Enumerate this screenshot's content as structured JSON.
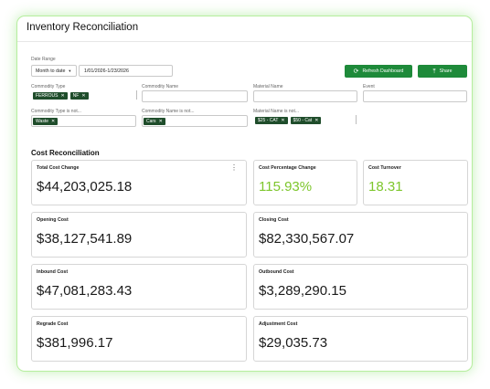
{
  "app": {
    "title": "Inventory Reconciliation"
  },
  "filters": {
    "date_range": {
      "label": "Date Range",
      "preset": "Month to date",
      "value": "1/01/2026-1/23/2026"
    },
    "commodity_type": {
      "label": "Commodity Type",
      "chips": [
        "FERROUS",
        "NF"
      ]
    },
    "commodity_name": {
      "label": "Commodity Name",
      "value": ""
    },
    "material_name": {
      "label": "Material Name",
      "value": ""
    },
    "event": {
      "label": "Event",
      "value": ""
    },
    "commodity_type_not": {
      "label": "Commodity Type is not...",
      "chips": [
        "Waste"
      ]
    },
    "commodity_name_not": {
      "label": "Commodity Name is not...",
      "chips": [
        "Cars"
      ]
    },
    "material_name_not": {
      "label": "Material Name is not...",
      "chips": [
        "$25 - CAT",
        "$50 - Cat"
      ]
    }
  },
  "actions": {
    "refresh_label": "Refresh Dashboard",
    "share_label": "Share"
  },
  "section": {
    "title": "Cost Reconciliation"
  },
  "metrics": {
    "total_cost_change": {
      "label": "Total Cost Change",
      "value": "$44,203,025.18"
    },
    "cost_percentage_change": {
      "label": "Cost Percentage Change",
      "value": "115.93%"
    },
    "cost_turnover": {
      "label": "Cost Turnover",
      "value": "18.31"
    },
    "opening_cost": {
      "label": "Opening Cost",
      "value": "$38,127,541.89"
    },
    "closing_cost": {
      "label": "Closing Cost",
      "value": "$82,330,567.07"
    },
    "inbound_cost": {
      "label": "Inbound Cost",
      "value": "$47,081,283.43"
    },
    "outbound_cost": {
      "label": "Outbound Cost",
      "value": "$3,289,290.15"
    },
    "regrade_cost": {
      "label": "Regrade Cost",
      "value": "$381,996.17"
    },
    "adjustment_cost": {
      "label": "Adjustment Cost",
      "value": "$29,035.73"
    }
  },
  "colors": {
    "accent_green": "#1e8a3a",
    "chip_green": "#1f4d2b",
    "value_green": "#7dc62c",
    "frame_glow": "#b6ee9e"
  }
}
